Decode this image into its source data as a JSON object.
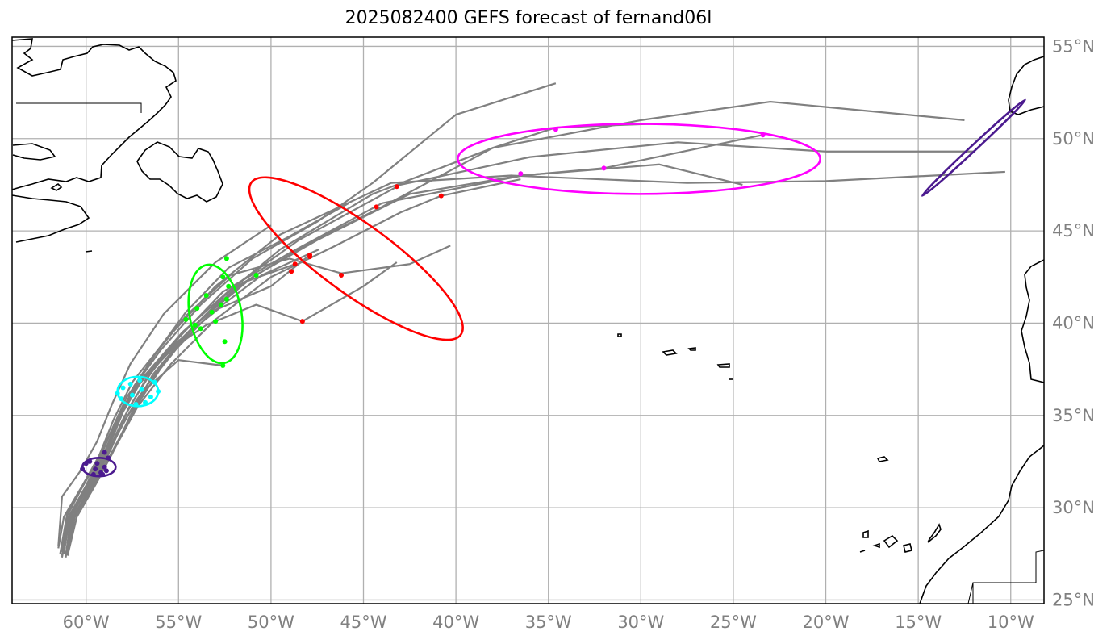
{
  "title": "2025082400 GEFS forecast of fernand06l",
  "lon_labels": [
    "60°W",
    "55°W",
    "50°W",
    "45°W",
    "40°W",
    "35°W",
    "30°W",
    "25°W",
    "20°W",
    "15°W",
    "10°W"
  ],
  "lat_labels": [
    "55°N",
    "50°N",
    "45°N",
    "40°N",
    "35°N",
    "30°N",
    "25°N"
  ],
  "colors": {
    "track": "#808080",
    "coast": "#000000",
    "grid": "#b0b0b0",
    "t0": "#4b1a8f",
    "t24": "#00ffff",
    "t48": "#00ff00",
    "t72": "#ff0000",
    "t96": "#ff00ff",
    "t120": "#4b1a8f"
  },
  "chart_data": {
    "type": "map",
    "projection": "PlateCarree",
    "extent": {
      "lon": [
        -64.0,
        -8.2
      ],
      "lat": [
        24.8,
        55.5
      ]
    },
    "grid": true,
    "tracks": [
      [
        [
          -61.3,
          27.3
        ],
        [
          -60.9,
          29.5
        ],
        [
          -59.8,
          31.2
        ],
        [
          -59.0,
          33.0
        ],
        [
          -58.2,
          35.0
        ],
        [
          -57.0,
          37.0
        ],
        [
          -55.0,
          39.0
        ],
        [
          -52.5,
          41.5
        ],
        [
          -49.5,
          44.0
        ],
        [
          -44.5,
          47.0
        ],
        [
          -38.0,
          49.5
        ],
        [
          -30.0,
          51.0
        ],
        [
          -23.0,
          52.0
        ],
        [
          -12.5,
          51.0
        ]
      ],
      [
        [
          -61.1,
          27.4
        ],
        [
          -60.8,
          29.6
        ],
        [
          -59.7,
          31.4
        ],
        [
          -58.8,
          33.2
        ],
        [
          -58.0,
          35.2
        ],
        [
          -56.8,
          37.2
        ],
        [
          -54.8,
          39.5
        ],
        [
          -52.0,
          42.0
        ],
        [
          -48.5,
          44.5
        ],
        [
          -43.0,
          47.5
        ],
        [
          -36.0,
          49.0
        ],
        [
          -28.0,
          49.8
        ],
        [
          -20.0,
          49.3
        ],
        [
          -12.0,
          49.3
        ]
      ],
      [
        [
          -61.5,
          27.8
        ],
        [
          -61.2,
          29.5
        ],
        [
          -60.2,
          31.2
        ],
        [
          -59.3,
          32.8
        ],
        [
          -58.5,
          34.8
        ],
        [
          -57.5,
          36.8
        ],
        [
          -55.6,
          39.2
        ],
        [
          -53.0,
          42.0
        ],
        [
          -49.5,
          44.8
        ],
        [
          -43.5,
          47.6
        ],
        [
          -37.0,
          48.0
        ],
        [
          -27.5,
          47.6
        ],
        [
          -20.0,
          47.7
        ],
        [
          -10.3,
          48.2
        ]
      ],
      [
        [
          -61.0,
          27.4
        ],
        [
          -60.6,
          29.7
        ],
        [
          -59.5,
          31.5
        ],
        [
          -58.6,
          33.3
        ],
        [
          -57.7,
          35.4
        ],
        [
          -56.3,
          37.6
        ],
        [
          -54.0,
          40.0
        ],
        [
          -51.0,
          42.5
        ],
        [
          -47.5,
          44.5
        ],
        [
          -42.5,
          47.0
        ],
        [
          -36.5,
          48.0
        ],
        [
          -29.0,
          48.6
        ],
        [
          -24.5,
          47.5
        ]
      ],
      [
        [
          -61.2,
          27.6
        ],
        [
          -60.9,
          29.3
        ],
        [
          -60.0,
          31.0
        ],
        [
          -59.0,
          32.6
        ],
        [
          -58.0,
          34.8
        ],
        [
          -56.8,
          36.9
        ],
        [
          -55.0,
          39.2
        ],
        [
          -52.6,
          41.7
        ],
        [
          -49.0,
          43.8
        ],
        [
          -44.0,
          46.5
        ],
        [
          -36.4,
          48.0
        ],
        [
          -32.0,
          48.4
        ],
        [
          -23.4,
          50.2
        ]
      ],
      [
        [
          -61.0,
          27.5
        ],
        [
          -60.7,
          29.4
        ],
        [
          -59.6,
          31.2
        ],
        [
          -58.6,
          32.9
        ],
        [
          -57.6,
          35.0
        ],
        [
          -56.4,
          37.2
        ],
        [
          -54.4,
          39.6
        ],
        [
          -51.8,
          42.0
        ],
        [
          -48.0,
          44.3
        ],
        [
          -44.0,
          46.3
        ],
        [
          -38.0,
          49.5
        ],
        [
          -34.6,
          50.6
        ],
        [
          -29.5,
          50.8
        ]
      ],
      [
        [
          -61.4,
          27.5
        ],
        [
          -61.0,
          29.8
        ],
        [
          -59.8,
          31.8
        ],
        [
          -58.8,
          33.8
        ],
        [
          -57.8,
          36.0
        ],
        [
          -56.0,
          38.5
        ],
        [
          -53.8,
          41.0
        ],
        [
          -51.0,
          43.5
        ],
        [
          -47.5,
          45.5
        ],
        [
          -44.5,
          47.6
        ],
        [
          -40.0,
          51.3
        ],
        [
          -34.6,
          53.0
        ]
      ],
      [
        [
          -61.0,
          27.4
        ],
        [
          -60.5,
          29.5
        ],
        [
          -59.4,
          31.4
        ],
        [
          -58.4,
          33.3
        ],
        [
          -57.2,
          35.5
        ],
        [
          -55.4,
          37.8
        ],
        [
          -53.0,
          40.2
        ],
        [
          -50.0,
          42.5
        ],
        [
          -46.5,
          44.2
        ],
        [
          -43.0,
          46.0
        ],
        [
          -40.8,
          46.9
        ],
        [
          -36.5,
          47.8
        ]
      ],
      [
        [
          -61.2,
          27.6
        ],
        [
          -60.9,
          29.5
        ],
        [
          -59.9,
          31.2
        ],
        [
          -59.0,
          33.0
        ],
        [
          -58.2,
          34.9
        ],
        [
          -57.4,
          36.6
        ],
        [
          -56.2,
          38.4
        ],
        [
          -54.6,
          40.4
        ],
        [
          -52.2,
          42.6
        ],
        [
          -49.0,
          43.5
        ],
        [
          -46.2,
          42.7
        ],
        [
          -42.5,
          43.2
        ],
        [
          -40.3,
          44.2
        ]
      ],
      [
        [
          -61.3,
          27.4
        ],
        [
          -61.0,
          29.6
        ],
        [
          -60.0,
          31.5
        ],
        [
          -59.1,
          33.1
        ],
        [
          -58.3,
          34.9
        ],
        [
          -57.3,
          36.6
        ],
        [
          -55.8,
          38.3
        ],
        [
          -53.5,
          39.9
        ],
        [
          -50.8,
          41.0
        ],
        [
          -48.3,
          40.1
        ],
        [
          -45.0,
          42.0
        ],
        [
          -43.2,
          43.3
        ]
      ],
      [
        [
          -61.1,
          27.3
        ],
        [
          -60.8,
          29.3
        ],
        [
          -59.8,
          31.1
        ],
        [
          -58.9,
          32.7
        ],
        [
          -58.0,
          34.6
        ],
        [
          -56.8,
          36.4
        ],
        [
          -55.0,
          38.0
        ],
        [
          -52.6,
          37.7
        ]
      ],
      [
        [
          -61.5,
          27.9
        ],
        [
          -61.3,
          30.6
        ],
        [
          -60.3,
          32.0
        ],
        [
          -59.4,
          33.6
        ],
        [
          -58.6,
          35.6
        ],
        [
          -57.6,
          37.8
        ],
        [
          -55.8,
          40.5
        ],
        [
          -53.0,
          43.3
        ],
        [
          -50.0,
          45.3
        ]
      ],
      [
        [
          -61.0,
          27.5
        ],
        [
          -60.6,
          29.5
        ],
        [
          -59.5,
          31.4
        ],
        [
          -58.5,
          33.2
        ],
        [
          -57.4,
          35.3
        ],
        [
          -56.0,
          37.5
        ],
        [
          -54.0,
          40.0
        ],
        [
          -51.5,
          42.2
        ],
        [
          -48.7,
          43.2
        ]
      ],
      [
        [
          -61.2,
          27.5
        ],
        [
          -60.9,
          29.6
        ],
        [
          -59.7,
          31.6
        ],
        [
          -58.7,
          33.5
        ],
        [
          -57.8,
          35.7
        ],
        [
          -56.5,
          38.0
        ],
        [
          -54.6,
          40.6
        ],
        [
          -52.3,
          43.0
        ],
        [
          -49.0,
          44.7
        ],
        [
          -45.8,
          46.5
        ]
      ],
      [
        [
          -61.3,
          27.6
        ],
        [
          -61.0,
          29.4
        ],
        [
          -60.0,
          31.2
        ],
        [
          -59.2,
          32.8
        ],
        [
          -58.4,
          34.7
        ],
        [
          -57.2,
          36.6
        ],
        [
          -55.3,
          38.8
        ],
        [
          -52.8,
          40.8
        ],
        [
          -50.0,
          42.0
        ],
        [
          -47.9,
          43.7
        ]
      ],
      [
        [
          -61.1,
          27.4
        ],
        [
          -60.7,
          29.7
        ],
        [
          -59.6,
          31.6
        ],
        [
          -58.5,
          33.6
        ],
        [
          -57.3,
          35.8
        ],
        [
          -55.7,
          38.0
        ],
        [
          -53.4,
          40.4
        ],
        [
          -50.5,
          42.6
        ],
        [
          -47.4,
          44.0
        ]
      ]
    ],
    "ellipses": [
      {
        "label": "t0",
        "color": "#4b1a8f",
        "center": [
          -59.3,
          32.2
        ],
        "rx": 0.9,
        "ry": 0.5,
        "angle": 0
      },
      {
        "label": "t24",
        "color": "#00ffff",
        "center": [
          -57.2,
          36.3
        ],
        "rx": 1.1,
        "ry": 0.8,
        "angle": 0
      },
      {
        "label": "t48",
        "color": "#00ff00",
        "center": [
          -53.0,
          40.5
        ],
        "rx": 1.4,
        "ry": 2.7,
        "angle": 10
      },
      {
        "label": "t72",
        "color": "#ff0000",
        "center": [
          -45.4,
          43.5
        ],
        "rx": 7.0,
        "ry": 1.9,
        "angle": -36
      },
      {
        "label": "t96",
        "color": "#ff00ff",
        "center": [
          -30.1,
          48.9
        ],
        "rx": 9.8,
        "ry": 1.9,
        "angle": 0
      },
      {
        "label": "t120",
        "color": "#4b1a8f",
        "center": [
          -12.0,
          49.5
        ],
        "rx": 3.8,
        "ry": 0.15,
        "angle": 43
      }
    ],
    "points": [
      {
        "color": "#4b1a8f",
        "coords": [
          [
            -59.0,
            33.0
          ],
          [
            -58.8,
            32.7
          ],
          [
            -59.8,
            32.5
          ],
          [
            -59.5,
            32.1
          ],
          [
            -59.2,
            31.9
          ],
          [
            -59.6,
            31.8
          ],
          [
            -59.0,
            32.2
          ],
          [
            -60.0,
            32.4
          ],
          [
            -58.9,
            32.0
          ],
          [
            -59.4,
            32.4
          ],
          [
            -60.2,
            32.1
          ],
          [
            -59.1,
            31.8
          ]
        ]
      },
      {
        "color": "#00ffff",
        "coords": [
          [
            -58.0,
            36.5
          ],
          [
            -57.5,
            36.1
          ],
          [
            -57.0,
            36.4
          ],
          [
            -56.3,
            36.8
          ],
          [
            -56.1,
            36.3
          ],
          [
            -57.3,
            35.6
          ],
          [
            -57.6,
            36.7
          ],
          [
            -58.3,
            36.2
          ],
          [
            -56.8,
            35.7
          ],
          [
            -57.1,
            36.9
          ],
          [
            -58.1,
            35.9
          ],
          [
            -56.5,
            36.0
          ]
        ]
      },
      {
        "color": "#00ff00",
        "coords": [
          [
            -52.4,
            43.5
          ],
          [
            -52.6,
            42.5
          ],
          [
            -52.3,
            42.0
          ],
          [
            -53.5,
            41.5
          ],
          [
            -54.0,
            40.8
          ],
          [
            -53.2,
            40.6
          ],
          [
            -53.8,
            39.7
          ],
          [
            -53.0,
            40.1
          ],
          [
            -52.5,
            39.0
          ],
          [
            -52.4,
            41.3
          ],
          [
            -54.6,
            40.2
          ],
          [
            -50.8,
            42.6
          ],
          [
            -52.6,
            37.7
          ],
          [
            -52.7,
            41.0
          ],
          [
            -54.1,
            39.9
          ]
        ]
      },
      {
        "color": "#ff0000",
        "coords": [
          [
            -43.2,
            47.4
          ],
          [
            -44.3,
            46.3
          ],
          [
            -40.8,
            46.9
          ],
          [
            -47.9,
            43.7
          ],
          [
            -48.7,
            43.2
          ],
          [
            -48.9,
            42.8
          ],
          [
            -46.2,
            42.6
          ],
          [
            -48.3,
            40.1
          ],
          [
            -47.9,
            43.6
          ]
        ]
      },
      {
        "color": "#ff00ff",
        "coords": [
          [
            -34.6,
            50.5
          ],
          [
            -23.4,
            50.2
          ],
          [
            -36.5,
            48.1
          ],
          [
            -32.0,
            48.4
          ]
        ]
      }
    ]
  }
}
